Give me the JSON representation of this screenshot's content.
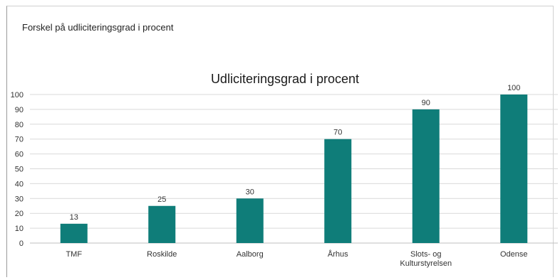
{
  "caption": "Forskel på udliciteringsgrad i procent",
  "colors": {
    "bar": "#0f7d79",
    "grid": "#d9d9d9",
    "axis": "#bfbfbf"
  },
  "chart_data": {
    "type": "bar",
    "title": "Udliciteringsgrad i procent",
    "categories": [
      "TMF",
      "Roskilde",
      "Aalborg",
      "Århus",
      "Slots- og Kulturstyrelsen",
      "Odense"
    ],
    "category_lines": [
      [
        "TMF"
      ],
      [
        "Roskilde"
      ],
      [
        "Aalborg"
      ],
      [
        "Århus"
      ],
      [
        "Slots- og",
        "Kulturstyrelsen"
      ],
      [
        "Odense"
      ]
    ],
    "values": [
      13,
      25,
      30,
      70,
      90,
      100
    ],
    "data_labels": [
      "13",
      "25",
      "30",
      "70",
      "90",
      "100"
    ],
    "ylim": [
      0,
      100
    ],
    "yticks": [
      0,
      10,
      20,
      30,
      40,
      50,
      60,
      70,
      80,
      90,
      100
    ],
    "xlabel": "",
    "ylabel": "",
    "grid": true,
    "legend": "none"
  }
}
